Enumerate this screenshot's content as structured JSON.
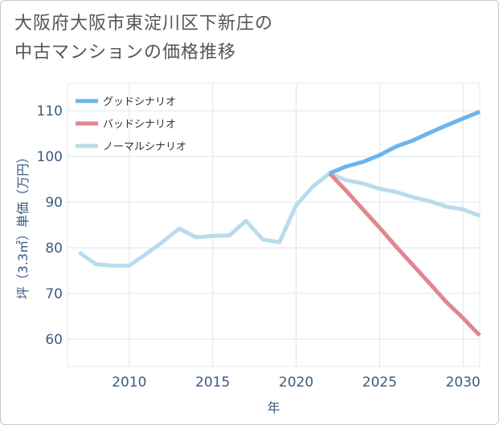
{
  "title": {
    "line1": "大阪府大阪市東淀川区下新庄の",
    "line2": "中古マンションの価格推移"
  },
  "chart_data": {
    "type": "line",
    "xlabel": "年",
    "ylabel": "坪（3.3㎡）単価（万円）",
    "xlim": [
      2006.3,
      2031
    ],
    "ylim": [
      54,
      116
    ],
    "x_ticks": [
      2010,
      2015,
      2020,
      2025,
      2030
    ],
    "y_ticks": [
      60,
      70,
      80,
      90,
      100,
      110
    ],
    "grid": true,
    "legend_position": "top-left",
    "series": [
      {
        "name": "グッドシナリオ",
        "color": "#6cb4ec",
        "points": [
          [
            2022,
            96.3
          ],
          [
            2023,
            97.8
          ],
          [
            2024,
            98.8
          ],
          [
            2025,
            100.3
          ],
          [
            2026,
            102.2
          ],
          [
            2027,
            103.5
          ],
          [
            2028,
            105.2
          ],
          [
            2029,
            106.8
          ],
          [
            2030,
            108.3
          ],
          [
            2031,
            109.8
          ]
        ]
      },
      {
        "name": "バッドシナリオ",
        "color": "#e0868f",
        "points": [
          [
            2022,
            96.3
          ],
          [
            2023,
            92.5
          ],
          [
            2024,
            88.4
          ],
          [
            2025,
            84.4
          ],
          [
            2026,
            80.2
          ],
          [
            2027,
            76.2
          ],
          [
            2028,
            72.2
          ],
          [
            2029,
            68.1
          ],
          [
            2030,
            64.6
          ],
          [
            2031,
            60.8
          ]
        ]
      },
      {
        "name": "ノーマルシナリオ",
        "color": "#b9dcec",
        "points": [
          [
            2007,
            79.0
          ],
          [
            2008,
            76.4
          ],
          [
            2009,
            76.1
          ],
          [
            2010,
            76.1
          ],
          [
            2011,
            78.6
          ],
          [
            2012,
            81.3
          ],
          [
            2013,
            84.2
          ],
          [
            2014,
            82.3
          ],
          [
            2015,
            82.6
          ],
          [
            2016,
            82.7
          ],
          [
            2017,
            85.9
          ],
          [
            2018,
            81.8
          ],
          [
            2019,
            81.2
          ],
          [
            2020,
            89.3
          ],
          [
            2021,
            93.4
          ],
          [
            2022,
            96.3
          ],
          [
            2023,
            94.8
          ],
          [
            2024,
            94.1
          ],
          [
            2025,
            92.9
          ],
          [
            2026,
            92.2
          ],
          [
            2027,
            91.1
          ],
          [
            2028,
            90.2
          ],
          [
            2029,
            89.0
          ],
          [
            2030,
            88.4
          ],
          [
            2031,
            87.0
          ]
        ]
      }
    ]
  }
}
